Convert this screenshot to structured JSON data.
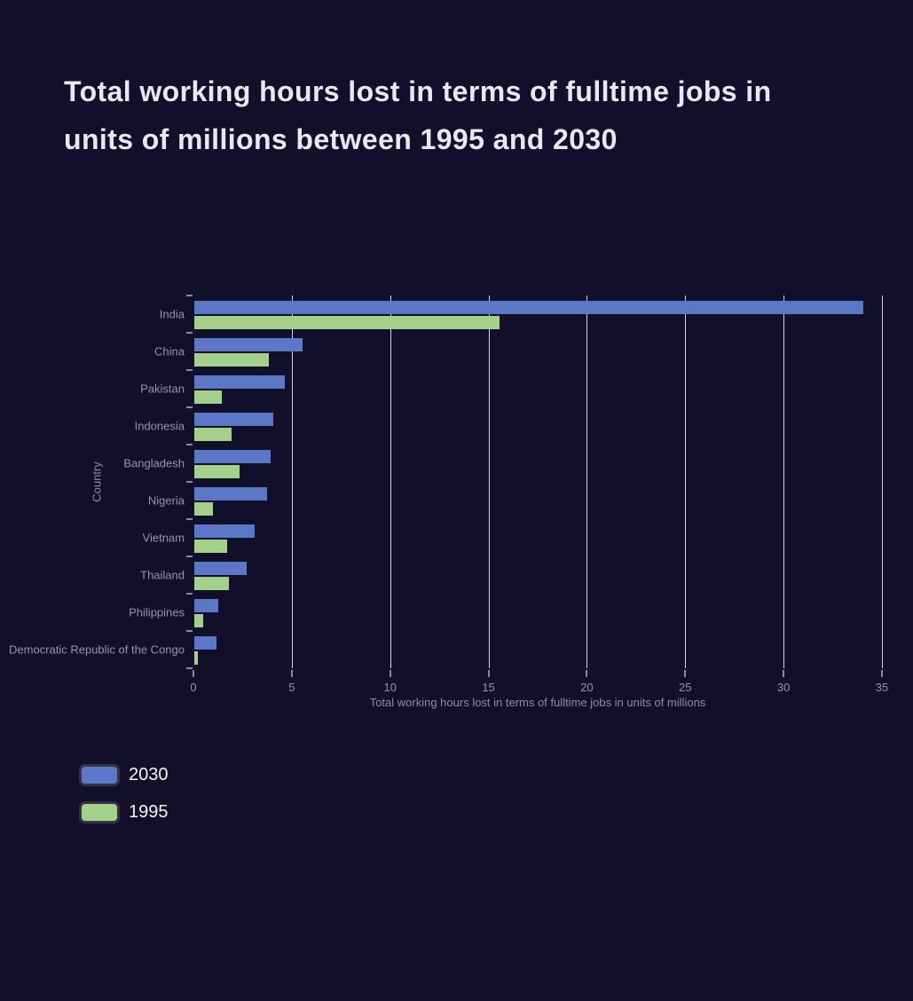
{
  "page": {
    "background_color": "#120f2b",
    "title_color": "#e9e7f0",
    "axis_text_color": "#9793a9",
    "gridline_color": "#ffffff"
  },
  "title": "Total working hours lost in terms of fulltime jobs in units of millions between 1995 and 2030",
  "chart_data": {
    "type": "bar",
    "orientation": "horizontal",
    "title": "Total working hours lost in terms of fulltime jobs in units of millions between 1995 and 2030",
    "categories": [
      "India",
      "China",
      "Pakistan",
      "Indonesia",
      "Bangladesh",
      "Nigeria",
      "Vietnam",
      "Thailand",
      "Philippines",
      "Democratic Republic of the Congo"
    ],
    "series": [
      {
        "name": "2030",
        "color": "#5c77c7",
        "values": [
          34,
          5.5,
          4.6,
          4.0,
          3.9,
          3.7,
          3.05,
          2.65,
          1.2,
          1.15
        ]
      },
      {
        "name": "1995",
        "color": "#a3d189",
        "values": [
          15.5,
          3.8,
          1.4,
          1.9,
          2.3,
          0.95,
          1.65,
          1.75,
          0.45,
          0.2
        ]
      }
    ],
    "xlabel": "Total working hours lost in terms of fulltime jobs in units of millions",
    "ylabel": "Country",
    "xlim": [
      0,
      35
    ],
    "xticks": [
      0,
      5,
      10,
      15,
      20,
      25,
      30,
      35
    ],
    "grid": true,
    "legend_position": "bottom-left"
  },
  "legend": {
    "items": [
      {
        "label": "2030",
        "color": "#5c77c7"
      },
      {
        "label": "1995",
        "color": "#a3d189"
      }
    ]
  }
}
